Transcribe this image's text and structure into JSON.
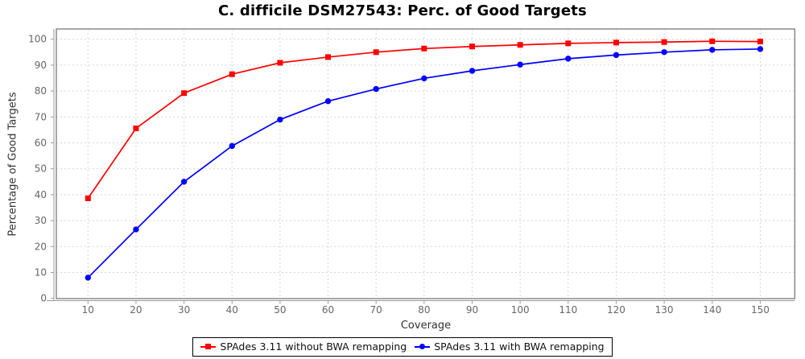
{
  "chart_data": {
    "type": "line",
    "title": "C. difficile DSM27543: Perc. of Good Targets",
    "xlabel": "Coverage",
    "ylabel": "Percentage of Good Targets",
    "x": [
      10,
      20,
      30,
      40,
      50,
      60,
      70,
      80,
      90,
      100,
      110,
      120,
      130,
      140,
      150
    ],
    "series": [
      {
        "name": "SPAdes 3.11 without BWA remapping",
        "color": "#ff0000",
        "marker": "square",
        "values": [
          38.6,
          65.6,
          79.2,
          86.5,
          90.9,
          93.1,
          95.0,
          96.4,
          97.2,
          97.8,
          98.4,
          98.7,
          98.9,
          99.2,
          99.1
        ]
      },
      {
        "name": "SPAdes 3.11 with BWA remapping",
        "color": "#0000ff",
        "marker": "circle",
        "values": [
          8.0,
          26.6,
          45.0,
          58.8,
          69.0,
          76.1,
          80.8,
          84.9,
          87.8,
          90.2,
          92.5,
          93.9,
          95.0,
          95.9,
          96.2
        ]
      }
    ],
    "ylim": [
      0,
      104
    ],
    "y_ticks": [
      0,
      10,
      20,
      30,
      40,
      50,
      60,
      70,
      80,
      90,
      100
    ],
    "grid": true,
    "grid_style": "dashed",
    "legend_position": "bottom",
    "colors": {
      "grid": "#d6d6d6",
      "plot_border": "#7a7a7a",
      "axis_line": "#9a9a9a",
      "tick_label": "#666666",
      "axis_label": "#333333",
      "title": "#000000",
      "background": "#ffffff"
    }
  }
}
